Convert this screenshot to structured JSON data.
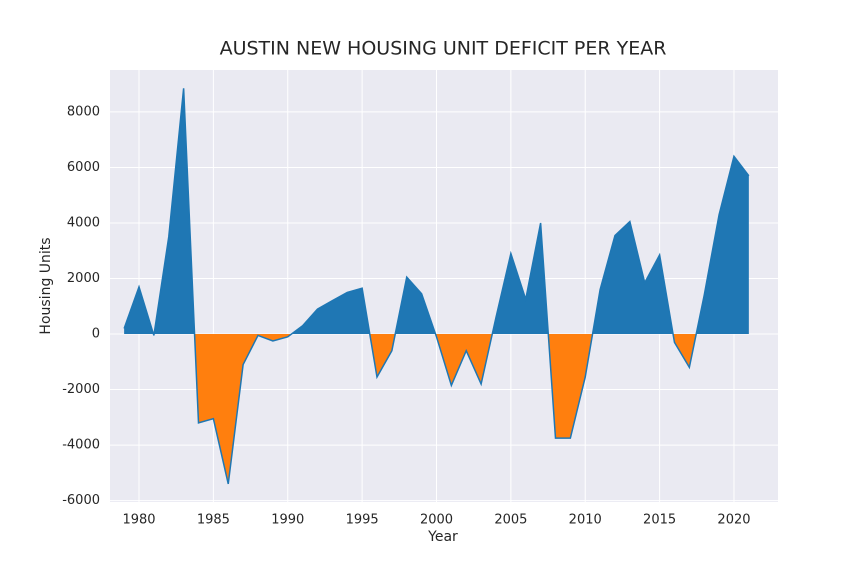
{
  "chart_data": {
    "type": "area",
    "title": "AUSTIN NEW HOUSING UNIT DEFICIT PER YEAR",
    "x_label": "Year",
    "y_label": "Housing Units",
    "x": [
      1979,
      1980,
      1981,
      1982,
      1983,
      1984,
      1985,
      1986,
      1987,
      1988,
      1989,
      1990,
      1991,
      1992,
      1993,
      1994,
      1995,
      1996,
      1997,
      1998,
      1999,
      2000,
      2001,
      2002,
      2003,
      2004,
      2005,
      2006,
      2007,
      2008,
      2009,
      2010,
      2011,
      2012,
      2013,
      2014,
      2015,
      2016,
      2017,
      2018,
      2019,
      2020,
      2021
    ],
    "values": [
      200,
      1700,
      -50,
      3500,
      8850,
      -3200,
      -3050,
      -5400,
      -1100,
      -50,
      -250,
      -100,
      300,
      900,
      1200,
      1500,
      1650,
      -1550,
      -600,
      2050,
      1450,
      -100,
      -1850,
      -600,
      -1800,
      600,
      2900,
      1250,
      4000,
      -3750,
      -3750,
      -1550,
      1600,
      3550,
      4050,
      1850,
      2850,
      -300,
      -1200,
      1400,
      4300,
      6400,
      5700
    ],
    "color": "#1f77b4",
    "negative_color": "#ff7f0e",
    "xlim": [
      1978.05,
      2022.96
    ],
    "ylim": [
      -6050,
      9510
    ],
    "xticks": [
      1980,
      1985,
      1990,
      1995,
      2000,
      2005,
      2010,
      2015,
      2020
    ],
    "yticks": [
      -6000,
      -4000,
      -2000,
      0,
      2000,
      4000,
      6000,
      8000
    ],
    "grid": true
  }
}
